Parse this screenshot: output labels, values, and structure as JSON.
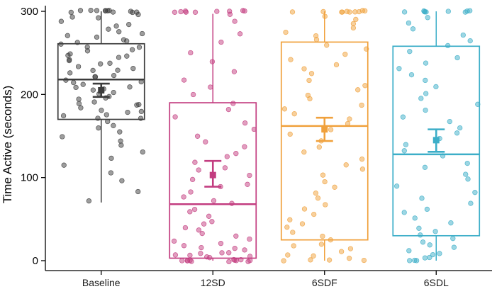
{
  "figure": {
    "background": "#ffffff"
  },
  "chart_data": {
    "type": "boxplot",
    "title": "",
    "ylabel": "Time Active (seconds)",
    "xlabel": "",
    "ylim": [
      0,
      300
    ],
    "yticks": [
      0,
      100,
      200,
      300
    ],
    "categories": [
      "Baseline",
      "12SD",
      "6SDF",
      "6SDL"
    ],
    "grid": false,
    "legend": "none",
    "axis_color": "#000000",
    "tick_label_color": "#1a1a1a",
    "series": [
      {
        "name": "Baseline",
        "color": "#3c3c3c",
        "box": {
          "whisker_low": 70,
          "q1": 170,
          "median": 218,
          "q3": 261,
          "whisker_high": 300
        },
        "mean": {
          "value": 205,
          "ci_low": 197,
          "ci_high": 213
        },
        "points": [
          300,
          300,
          300,
          300,
          300,
          300,
          300,
          300,
          300,
          300,
          300,
          300,
          297,
          294,
          291,
          288,
          285,
          282,
          279,
          276,
          273,
          270,
          268,
          266,
          264,
          262,
          260,
          258,
          256,
          254,
          252,
          250,
          248,
          246,
          244,
          242,
          240,
          238,
          236,
          234,
          232,
          230,
          228,
          226,
          224,
          222,
          220,
          218,
          216,
          214,
          212,
          210,
          208,
          206,
          204,
          202,
          200,
          198,
          196,
          194,
          192,
          190,
          188,
          186,
          184,
          182,
          180,
          178,
          176,
          174,
          172,
          170,
          167,
          163,
          159,
          155,
          150,
          145,
          139,
          132,
          124,
          115,
          105,
          95,
          83,
          72
        ]
      },
      {
        "name": "12SD",
        "color": "#c33d80",
        "box": {
          "whisker_low": 0,
          "q1": 3,
          "median": 68,
          "q3": 190,
          "whisker_high": 297
        },
        "mean": {
          "value": 103,
          "ci_low": 89,
          "ci_high": 120
        },
        "points": [
          300,
          300,
          300,
          300,
          300,
          300,
          300,
          300,
          300,
          297,
          0,
          0,
          0,
          0,
          0,
          0,
          0,
          0,
          0,
          0,
          1,
          2,
          3,
          4,
          5,
          6,
          7,
          8,
          9,
          10,
          12,
          14,
          16,
          18,
          20,
          23,
          26,
          29,
          32,
          36,
          40,
          44,
          48,
          53,
          58,
          63,
          68,
          73,
          78,
          83,
          88,
          93,
          98,
          103,
          108,
          113,
          118,
          124,
          130,
          136,
          143,
          150,
          157,
          165,
          173,
          181,
          190,
          199,
          208,
          218,
          228,
          239,
          250,
          262,
          274,
          287
        ]
      },
      {
        "name": "6SDF",
        "color": "#f0a13c",
        "box": {
          "whisker_low": 0,
          "q1": 25,
          "median": 162,
          "q3": 263,
          "whisker_high": 300
        },
        "mean": {
          "value": 158,
          "ci_low": 144,
          "ci_high": 172
        },
        "points": [
          300,
          300,
          300,
          300,
          300,
          300,
          300,
          300,
          300,
          300,
          0,
          0,
          0,
          2,
          4,
          6,
          8,
          11,
          14,
          17,
          21,
          25,
          29,
          34,
          39,
          44,
          50,
          56,
          62,
          68,
          74,
          81,
          88,
          95,
          102,
          109,
          116,
          123,
          130,
          137,
          144,
          151,
          158,
          164,
          170,
          176,
          182,
          188,
          194,
          200,
          206,
          212,
          218,
          224,
          230,
          236,
          242,
          248,
          254,
          260,
          265,
          270,
          275,
          280,
          285,
          290,
          295
        ]
      },
      {
        "name": "6SDL",
        "color": "#3caec8",
        "box": {
          "whisker_low": 0,
          "q1": 30,
          "median": 128,
          "q3": 258,
          "whisker_high": 300
        },
        "mean": {
          "value": 145,
          "ci_low": 131,
          "ci_high": 158
        },
        "points": [
          300,
          300,
          300,
          300,
          300,
          300,
          300,
          300,
          300,
          0,
          0,
          1,
          3,
          5,
          7,
          9,
          12,
          15,
          18,
          22,
          26,
          30,
          35,
          40,
          45,
          51,
          57,
          63,
          69,
          76,
          83,
          90,
          97,
          104,
          111,
          118,
          125,
          132,
          139,
          146,
          153,
          160,
          167,
          174,
          181,
          188,
          195,
          202,
          209,
          216,
          223,
          230,
          237,
          244,
          251,
          258,
          265,
          272,
          279,
          286,
          293
        ]
      }
    ]
  }
}
